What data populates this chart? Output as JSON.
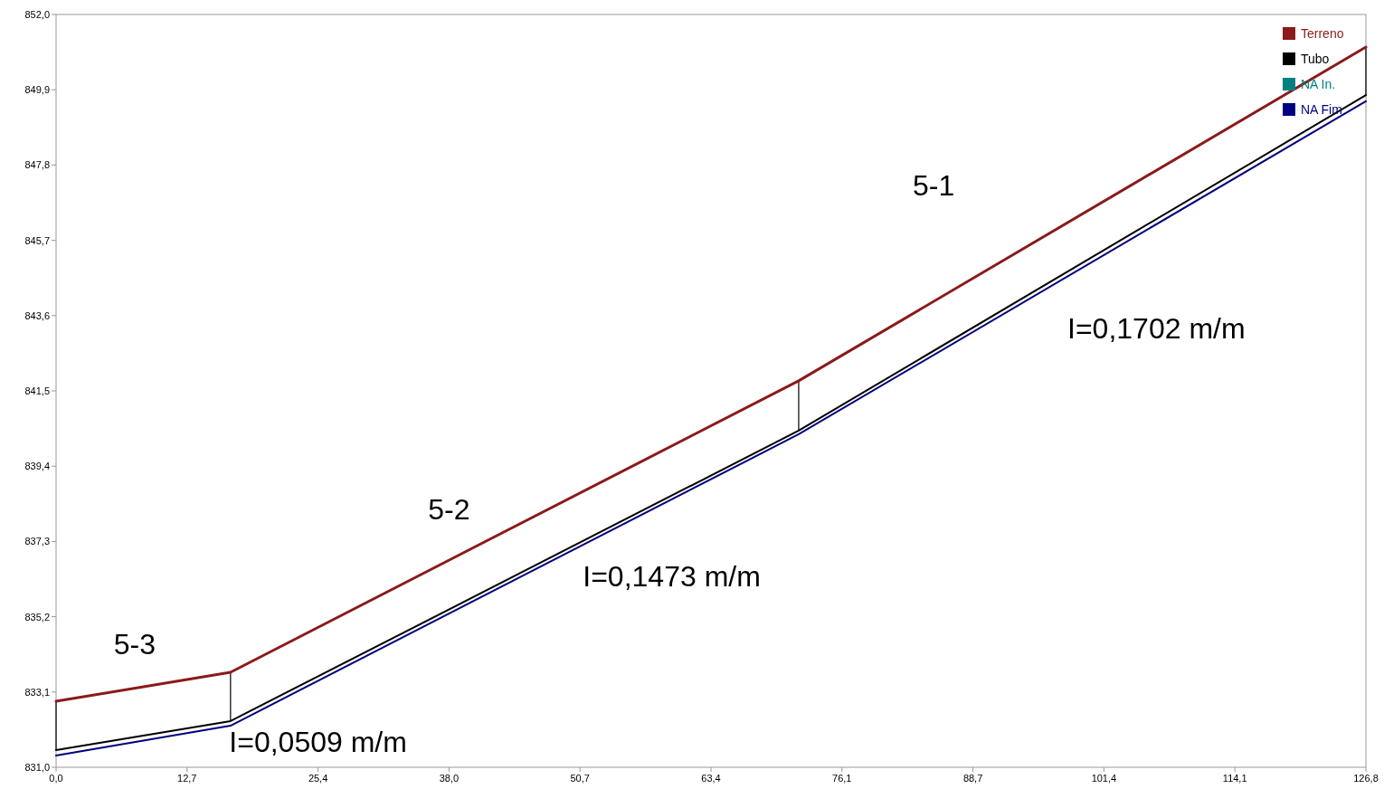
{
  "chart_data": {
    "type": "line",
    "x": [
      0,
      16.88,
      71.86,
      126.75
    ],
    "series": [
      {
        "name": "Terreno",
        "color": "#8b1a1a",
        "values": [
          832.84,
          833.65,
          841.78,
          851.09
        ]
      },
      {
        "name": "Tubo",
        "color": "#000000",
        "values": [
          831.48,
          832.29,
          840.39,
          849.75
        ]
      },
      {
        "name": "NA In.",
        "color": "#008080",
        "values": [
          null,
          null,
          null,
          null
        ]
      },
      {
        "name": "NA Fim",
        "color": "#000080",
        "values": [
          831.33,
          832.16,
          840.29,
          849.58
        ]
      }
    ],
    "xlim": [
      0,
      126.75
    ],
    "xticks": [
      {
        "value": 0,
        "label": "0,0"
      },
      {
        "value": 12.675,
        "label": "12,7"
      },
      {
        "value": 25.35,
        "label": "25,4"
      },
      {
        "value": 38.025,
        "label": "38,0"
      },
      {
        "value": 50.7,
        "label": "50,7"
      },
      {
        "value": 63.375,
        "label": "63,4"
      },
      {
        "value": 76.05,
        "label": "76,1"
      },
      {
        "value": 88.725,
        "label": "88,7"
      },
      {
        "value": 101.4,
        "label": "101,4"
      },
      {
        "value": 114.075,
        "label": "114,1"
      },
      {
        "value": 126.75,
        "label": "126,8"
      }
    ],
    "ylim": [
      831,
      852
    ],
    "yticks": [
      {
        "value": 831,
        "label": "831,0"
      },
      {
        "value": 833.1,
        "label": "833,1"
      },
      {
        "value": 835.2,
        "label": "835,2"
      },
      {
        "value": 837.3,
        "label": "837,3"
      },
      {
        "value": 839.4,
        "label": "839,4"
      },
      {
        "value": 841.5,
        "label": "841,5"
      },
      {
        "value": 843.6,
        "label": "843,6"
      },
      {
        "value": 845.7,
        "label": "845,7"
      },
      {
        "value": 847.8,
        "label": "847,8"
      },
      {
        "value": 849.9,
        "label": "849,9"
      },
      {
        "value": 852,
        "label": "852,0"
      }
    ],
    "annotations": [
      "5-3",
      "5-2",
      "5-1",
      "I=0,1702 m/m",
      "I=0,1473 m/m",
      "I=0,0509 m/m"
    ],
    "legend": "top right",
    "marker": "none",
    "line_style": "solid",
    "grid": false
  }
}
